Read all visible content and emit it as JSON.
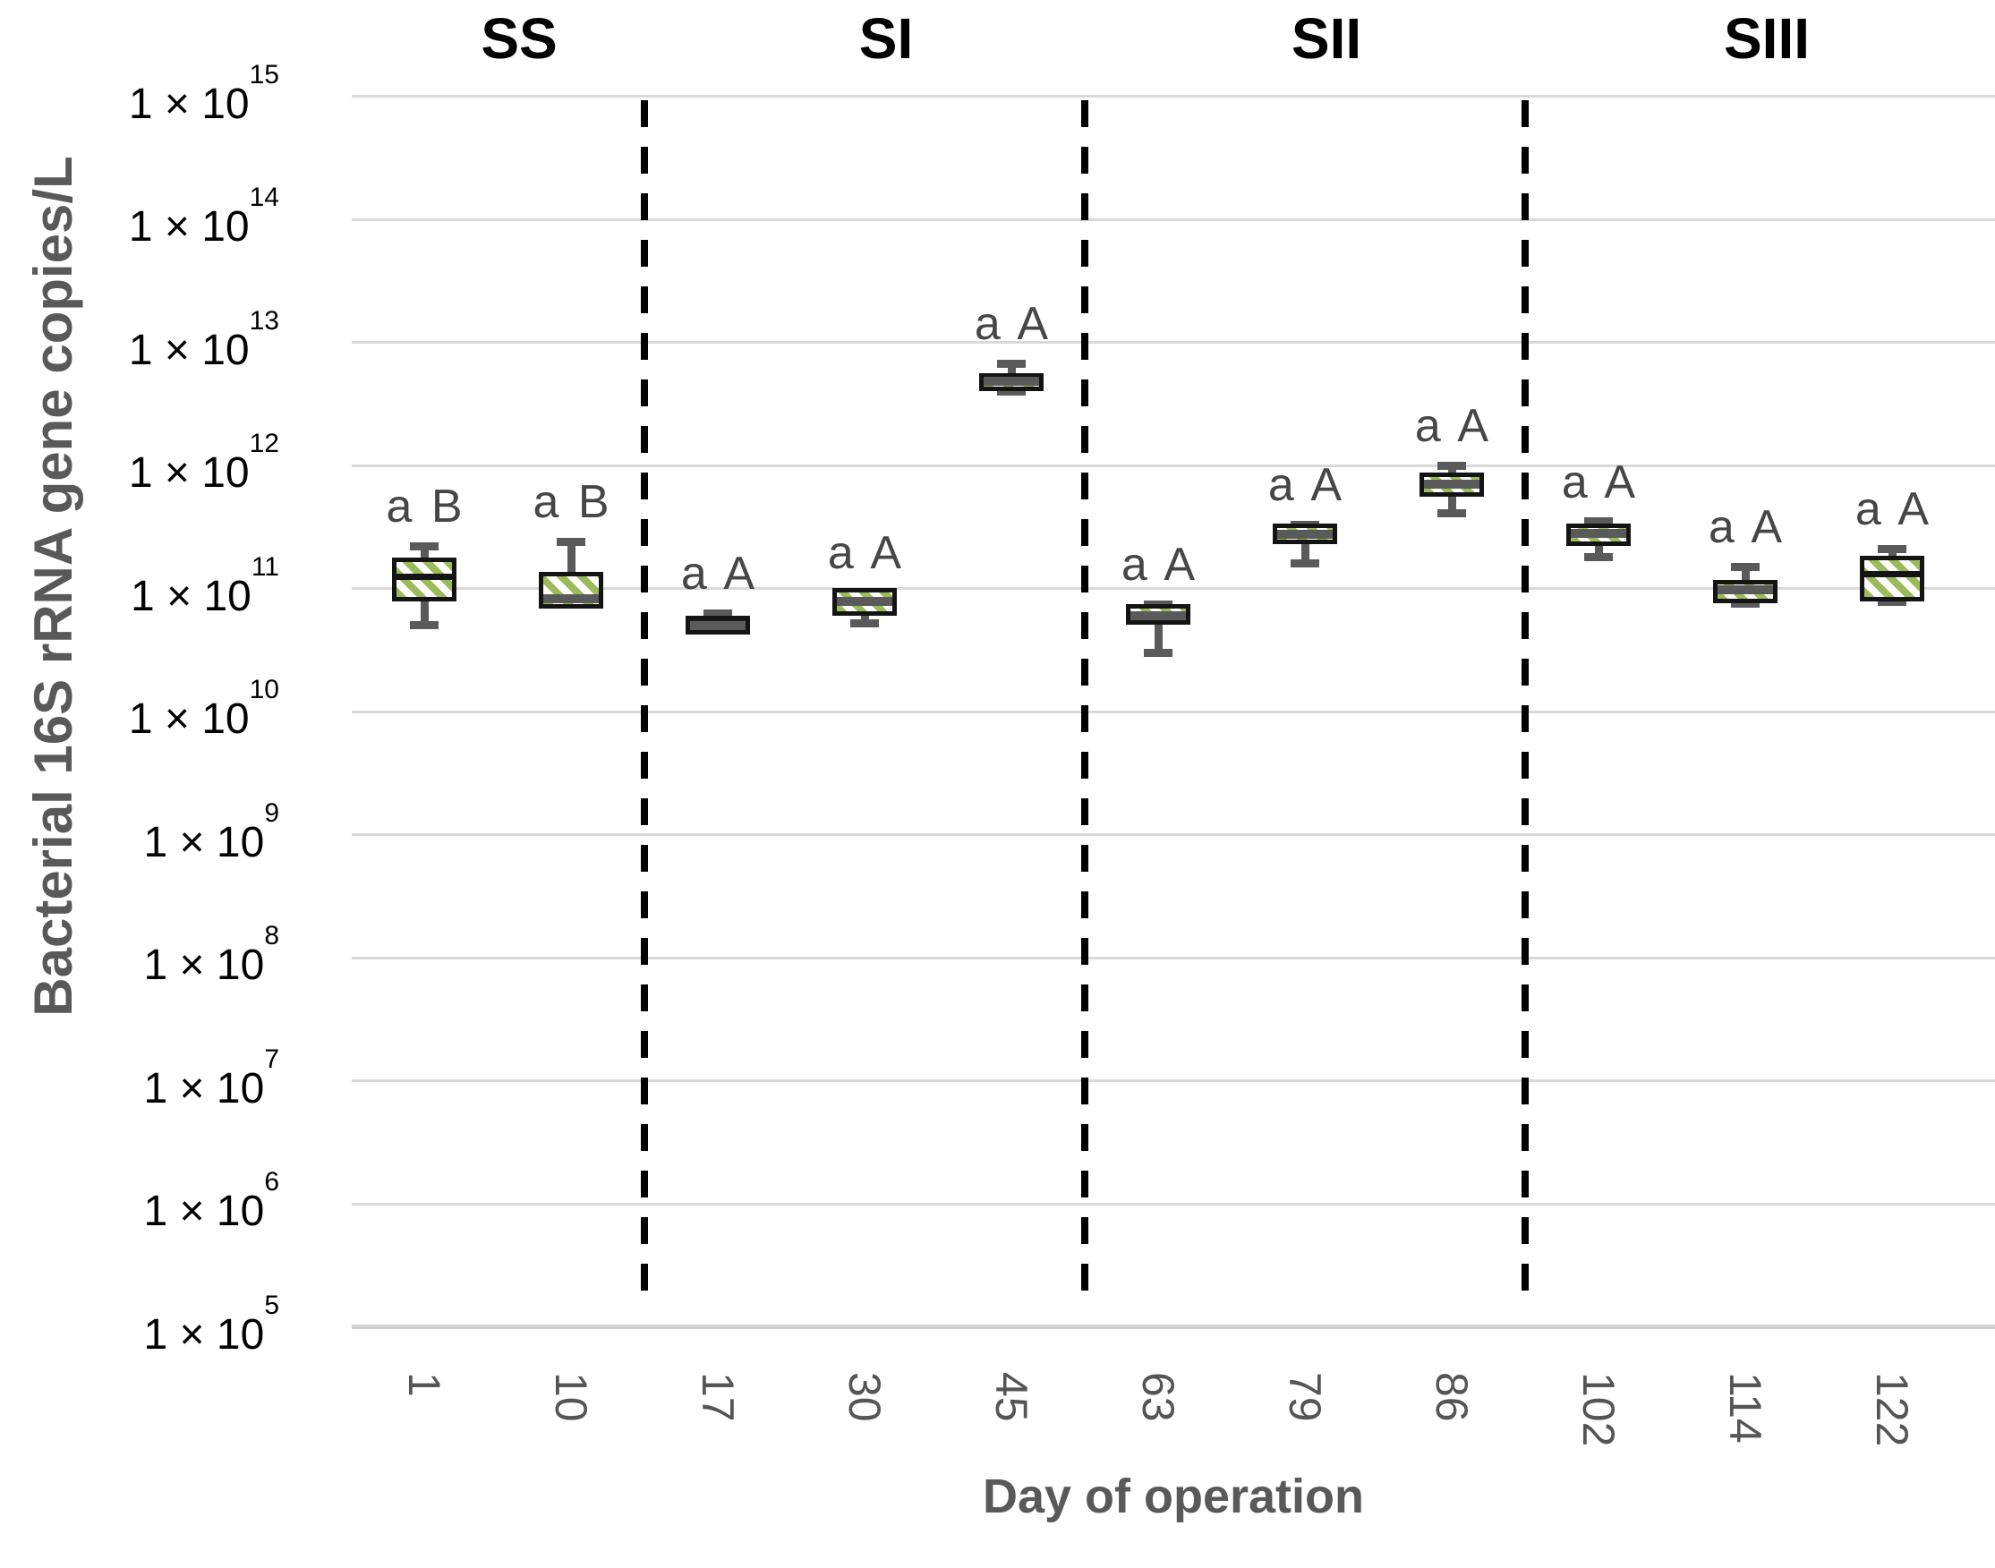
{
  "chart_data": {
    "type": "box",
    "title": "",
    "ylabel": "Bacterial 16S rRNA gene copies/L",
    "xlabel": "Day of operation",
    "y_axis": {
      "scale": "log10",
      "min_exponent": 5,
      "max_exponent": 15,
      "tick_label_base": "1 × 10",
      "gridlines": true
    },
    "categories": [
      "1",
      "10",
      "17",
      "30",
      "45",
      "63",
      "79",
      "86",
      "102",
      "114",
      "122"
    ],
    "sections": [
      {
        "label": "SS",
        "day_indices": [
          0,
          1
        ]
      },
      {
        "label": "SI",
        "day_indices": [
          2,
          3,
          4
        ]
      },
      {
        "label": "SII",
        "day_indices": [
          5,
          6,
          7
        ]
      },
      {
        "label": "SIII",
        "day_indices": [
          8,
          9,
          10
        ]
      }
    ],
    "boxes": [
      {
        "day": "1",
        "section": "SS",
        "annotation": "a B",
        "whisker_low": 50000000000.0,
        "q1": 85000000000.0,
        "median": 125000000000.0,
        "q3": 165000000000.0,
        "whisker_high": 220000000000.0,
        "fill": "striped",
        "median_style": "black"
      },
      {
        "day": "10",
        "section": "SS",
        "annotation": "a B",
        "whisker_low": null,
        "q1": 75000000000.0,
        "median": 82000000000.0,
        "q3": 125000000000.0,
        "whisker_high": 240000000000.0,
        "fill": "striped",
        "median_style": "gray"
      },
      {
        "day": "17",
        "section": "SI",
        "annotation": "a A",
        "whisker_low": null,
        "q1": 46000000000.0,
        "median": 50000000000.0,
        "q3": 55000000000.0,
        "whisker_high": 63000000000.0,
        "fill": "dark",
        "median_style": "gray"
      },
      {
        "day": "30",
        "section": "SI",
        "annotation": "a A",
        "whisker_low": 52000000000.0,
        "q1": 65000000000.0,
        "median": 78000000000.0,
        "q3": 92000000000.0,
        "whisker_high": null,
        "fill": "striped",
        "median_style": "gray"
      },
      {
        "day": "45",
        "section": "SI",
        "annotation": "a A",
        "whisker_low": 4000000000000.0,
        "q1": 4400000000000.0,
        "median": 4800000000000.0,
        "q3": 5200000000000.0,
        "whisker_high": 6700000000000.0,
        "fill": "striped",
        "median_style": "gray"
      },
      {
        "day": "63",
        "section": "SII",
        "annotation": "a A",
        "whisker_low": 30000000000.0,
        "q1": 55000000000.0,
        "median": 60000000000.0,
        "q3": 69000000000.0,
        "whisker_high": 74000000000.0,
        "fill": "striped",
        "median_style": "gray"
      },
      {
        "day": "79",
        "section": "SII",
        "annotation": "a A",
        "whisker_low": 160000000000.0,
        "q1": 250000000000.0,
        "median": 275000000000.0,
        "q3": 310000000000.0,
        "whisker_high": 330000000000.0,
        "fill": "striped",
        "median_style": "gray"
      },
      {
        "day": "86",
        "section": "SII",
        "annotation": "a A",
        "whisker_low": 410000000000.0,
        "q1": 600000000000.0,
        "median": 700000000000.0,
        "q3": 810000000000.0,
        "whisker_high": 1000000000000.0,
        "fill": "striped",
        "median_style": "gray"
      },
      {
        "day": "102",
        "section": "SIII",
        "annotation": "a A",
        "whisker_low": 180000000000.0,
        "q1": 240000000000.0,
        "median": 280000000000.0,
        "q3": 310000000000.0,
        "whisker_high": 350000000000.0,
        "fill": "striped",
        "median_style": "gray"
      },
      {
        "day": "114",
        "section": "SIII",
        "annotation": "a A",
        "whisker_low": 75000000000.0,
        "q1": 82000000000.0,
        "median": 97000000000.0,
        "q3": 108000000000.0,
        "whisker_high": 150000000000.0,
        "fill": "striped",
        "median_style": "gray"
      },
      {
        "day": "122",
        "section": "SIII",
        "annotation": "a A",
        "whisker_low": 78000000000.0,
        "q1": 86000000000.0,
        "median": 130000000000.0,
        "q3": 170000000000.0,
        "whisker_high": 210000000000.0,
        "fill": "striped",
        "median_style": "black"
      }
    ],
    "colors": {
      "stripe_green": "#9BBB59",
      "box_fill_white": "#FFFFFF",
      "box_border_black": "#141414",
      "dark_box_fill": "#222222",
      "whisker_gray": "#5A5A5A",
      "median_gray": "#5A5A5A",
      "gridline_gray": "#D9D9D9",
      "axis_line_gray": "#D0D0D0",
      "annotation_gray": "#464646",
      "axis_title_gray": "#595959",
      "y_tick_black": "#000000",
      "x_tick_gray": "#555555",
      "divider_black": "#000000"
    },
    "layout_hints": {
      "legend": "none",
      "grid": "horizontal-only",
      "x_tick_rotation_deg": 90
    }
  }
}
